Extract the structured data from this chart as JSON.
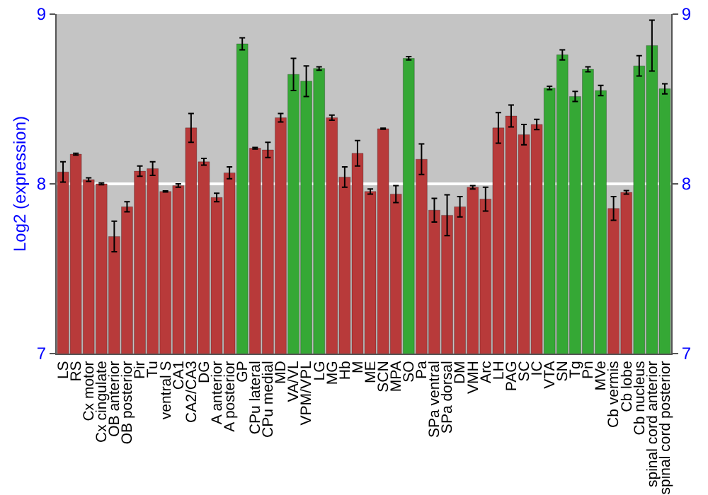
{
  "chart_data": {
    "type": "bar",
    "ylabel": "Log2 (expression)",
    "categories": [
      "LS",
      "RS",
      "Cx motor",
      "Cx cingulate",
      "OB anterior",
      "OB posterior",
      "Pir",
      "Tu",
      "ventral S",
      "CA1",
      "CA2/CA3",
      "DG",
      "A anterior",
      "A posterior",
      "GP",
      "CPu lateral",
      "CPu medial",
      "MD",
      "VA/VL",
      "VPM/VPL",
      "LG",
      "MG",
      "Hb",
      "M",
      "ME",
      "SCN",
      "MPA",
      "SO",
      "Pa",
      "SPa ventral",
      "SPa dorsal",
      "DM",
      "VMH",
      "Arc",
      "LH",
      "PAG",
      "SC",
      "IC",
      "VTA",
      "SN",
      "Tg",
      "Pn",
      "MVe",
      "Cb vermis",
      "Cb lobe",
      "Cb nucleus",
      "spinal cord anterior",
      "spinal cord posterior"
    ],
    "values": [
      8.07,
      8.175,
      8.025,
      8.0,
      7.69,
      7.865,
      8.075,
      8.09,
      7.955,
      7.99,
      8.33,
      8.13,
      7.92,
      8.065,
      8.825,
      8.21,
      8.2,
      8.39,
      8.645,
      8.605,
      8.68,
      8.39,
      8.04,
      8.18,
      7.955,
      8.325,
      7.94,
      8.74,
      8.145,
      7.845,
      7.815,
      7.865,
      7.98,
      7.91,
      8.33,
      8.4,
      8.29,
      8.35,
      8.565,
      8.76,
      8.515,
      8.675,
      8.55,
      7.855,
      7.95,
      8.695,
      8.815,
      8.56
    ],
    "errors": [
      0.06,
      0.005,
      0.01,
      0.005,
      0.09,
      0.03,
      0.03,
      0.04,
      0.003,
      0.01,
      0.085,
      0.02,
      0.025,
      0.035,
      0.035,
      0.005,
      0.045,
      0.025,
      0.095,
      0.09,
      0.01,
      0.015,
      0.06,
      0.075,
      0.015,
      0.003,
      0.05,
      0.01,
      0.09,
      0.07,
      0.12,
      0.06,
      0.01,
      0.07,
      0.09,
      0.065,
      0.06,
      0.03,
      0.01,
      0.03,
      0.03,
      0.015,
      0.03,
      0.07,
      0.01,
      0.06,
      0.15,
      0.03
    ],
    "colors": [
      "#b83a3a",
      "#b83a3a",
      "#b83a3a",
      "#b83a3a",
      "#b83a3a",
      "#b83a3a",
      "#b83a3a",
      "#b83a3a",
      "#b83a3a",
      "#b83a3a",
      "#b83a3a",
      "#b83a3a",
      "#b83a3a",
      "#b83a3a",
      "#35a835",
      "#b83a3a",
      "#b83a3a",
      "#b83a3a",
      "#35a835",
      "#35a835",
      "#35a835",
      "#b83a3a",
      "#b83a3a",
      "#b83a3a",
      "#b83a3a",
      "#b83a3a",
      "#b83a3a",
      "#35a835",
      "#b83a3a",
      "#b83a3a",
      "#b83a3a",
      "#b83a3a",
      "#b83a3a",
      "#b83a3a",
      "#b83a3a",
      "#b83a3a",
      "#b83a3a",
      "#b83a3a",
      "#35a835",
      "#35a835",
      "#35a835",
      "#35a835",
      "#35a835",
      "#b83a3a",
      "#b83a3a",
      "#35a835",
      "#35a835",
      "#35a835"
    ],
    "ylim": [
      7,
      9
    ],
    "yticks": [
      7,
      8,
      9
    ],
    "y2lim": [
      7,
      9
    ],
    "y2ticks": [
      7,
      8,
      9
    ],
    "grid": "y"
  }
}
